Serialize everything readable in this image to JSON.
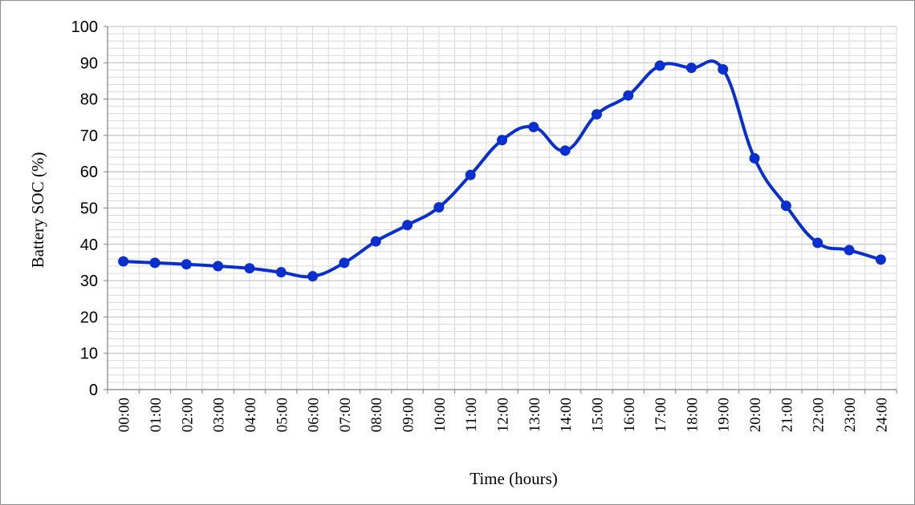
{
  "chart_data": {
    "type": "line",
    "title": "",
    "xlabel": "Time (hours)",
    "ylabel": "Battery SOC (%)",
    "ylim": [
      0,
      100
    ],
    "y_ticks": [
      "0",
      "10",
      "20",
      "30",
      "40",
      "50",
      "60",
      "70",
      "80",
      "90",
      "100"
    ],
    "grid": true,
    "line_color": "#0a2fd0",
    "categories": [
      "00:00",
      "01:00",
      "02:00",
      "03:00",
      "04:00",
      "05:00",
      "06:00",
      "07:00",
      "08:00",
      "09:00",
      "10:00",
      "11:00",
      "12:00",
      "13:00",
      "14:00",
      "15:00",
      "16:00",
      "17:00",
      "18:00",
      "19:00",
      "20:00",
      "21:00",
      "22:00",
      "23:00",
      "24:00"
    ],
    "series": [
      {
        "values": [
          35.3,
          34.9,
          34.5,
          34.0,
          33.4,
          32.3,
          31.2,
          34.9,
          40.8,
          45.3,
          50.2,
          59.1,
          68.7,
          72.3,
          65.8,
          75.8,
          81.0,
          89.2,
          88.6,
          88.2,
          63.7,
          50.6,
          40.4,
          38.4,
          35.8
        ]
      }
    ]
  }
}
